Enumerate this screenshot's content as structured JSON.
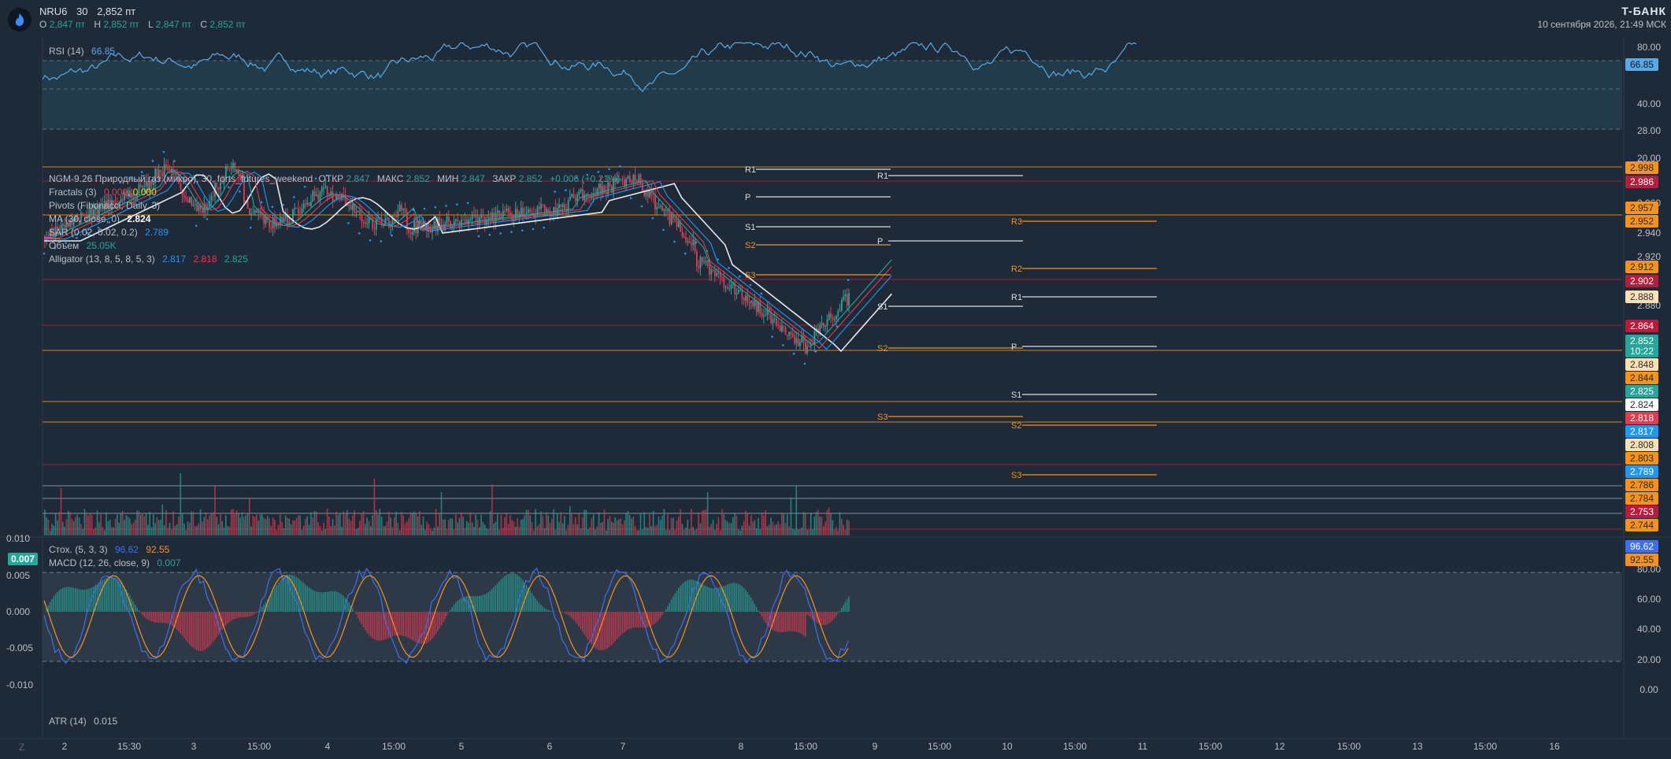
{
  "header": {
    "symbol": "NRU6",
    "interval": "30",
    "last_price": "2,852 пт",
    "open_label": "O",
    "open": "2,847 пт",
    "high_label": "H",
    "high": "2,852 пт",
    "low_label": "L",
    "low": "2,847 пт",
    "close_label": "C",
    "close": "2,852 пт",
    "brand": "T-БАНК",
    "datetime": "10 сентября 2026, 21:49 МСК"
  },
  "rsi": {
    "label": "RSI (14)",
    "value": "66.85",
    "axis": [
      "80.00",
      "40.00",
      "28.00",
      "20.00"
    ]
  },
  "main_legend": {
    "title": "NGM-9.26 Природный газ (микро), 30, forts_futures_weekend",
    "open_label": "ОТКР",
    "open": "2.847",
    "max_label": "МАКС",
    "max": "2.852",
    "min_label": "МИН",
    "min": "2.847",
    "close_label": "ЗАКР",
    "close": "2.852",
    "change": "+0.006 (+0.21%)",
    "fractals_label": "Fractals (3)",
    "fractals_a": "0.000",
    "fractals_b": "0.000",
    "pivots_label": "Pivots (Fibonacci, Daily, 3)",
    "ma_label": "MA (30, close, 0)",
    "ma_value": "2.824",
    "sar_label": "SAR (0.02, 0.02, 0.2)",
    "sar_value": "2.789",
    "volume_label": "Объем",
    "volume_value": "25.05K",
    "alligator_label": "Alligator (13, 8, 5, 8, 5, 3)",
    "alligator_a": "2.817",
    "alligator_b": "2.818",
    "alligator_c": "2.825"
  },
  "price_axis": [
    "2.960",
    "2.940",
    "2.920",
    "2.880"
  ],
  "price_tags": [
    {
      "text": "2.998",
      "bg": "#f7931a",
      "fg": "#1f2a38"
    },
    {
      "text": "2.986",
      "bg": "#b71c3b",
      "fg": "#ffffff"
    },
    {
      "text": "2.957",
      "bg": "#f7931a",
      "fg": "#1f2a38"
    },
    {
      "text": "2.952",
      "bg": "#f7931a",
      "fg": "#1f2a38"
    },
    {
      "text": "2.912",
      "bg": "#f7931a",
      "fg": "#1f2a38"
    },
    {
      "text": "2.902",
      "bg": "#b71c3b",
      "fg": "#ffffff"
    },
    {
      "text": "2.888",
      "bg": "#ffe0b2",
      "fg": "#1f2a38"
    },
    {
      "text": "2.864",
      "bg": "#b71c3b",
      "fg": "#ffffff"
    },
    {
      "text": "2.852",
      "bg": "#26a69a",
      "fg": "#ffffff"
    },
    {
      "text": "10:22",
      "bg": "#26a69a",
      "fg": "#ffffff"
    },
    {
      "text": "2.848",
      "bg": "#ffe0b2",
      "fg": "#1f2a38"
    },
    {
      "text": "2.844",
      "bg": "#f7931a",
      "fg": "#1f2a38"
    },
    {
      "text": "2.825",
      "bg": "#26a69a",
      "fg": "#ffffff"
    },
    {
      "text": "2.824",
      "bg": "#ffffff",
      "fg": "#1f2a38"
    },
    {
      "text": "2.818",
      "bg": "#e53950",
      "fg": "#ffffff"
    },
    {
      "text": "2.817",
      "bg": "#2196f3",
      "fg": "#ffffff"
    },
    {
      "text": "2.808",
      "bg": "#ffe0b2",
      "fg": "#1f2a38"
    },
    {
      "text": "2.803",
      "bg": "#f7931a",
      "fg": "#1f2a38"
    },
    {
      "text": "2.789",
      "bg": "#2196f3",
      "fg": "#ffffff"
    },
    {
      "text": "2.786",
      "bg": "#f7931a",
      "fg": "#1f2a38"
    },
    {
      "text": "2.784",
      "bg": "#f7931a",
      "fg": "#1f2a38"
    },
    {
      "text": "2.753",
      "bg": "#b71c3b",
      "fg": "#ffffff"
    },
    {
      "text": "2.744",
      "bg": "#f7931a",
      "fg": "#1f2a38"
    }
  ],
  "pivot_labels": [
    "R1",
    "P",
    "S1",
    "S2",
    "S3",
    "R1",
    "P",
    "S1",
    "S2",
    "S3",
    "R3",
    "R2",
    "R1",
    "P",
    "S1",
    "S2",
    "S3"
  ],
  "stoch": {
    "label": "Стох. (5, 3, 3)",
    "k": "96.62",
    "d": "92.55",
    "axis": [
      "80.00",
      "60.00",
      "40.00",
      "20.00",
      "0.00"
    ]
  },
  "macd": {
    "label": "MACD (12, 26, close, 9)",
    "value": "0.007",
    "tag": "0.007",
    "axis": [
      "0.010",
      "0.005",
      "0.000",
      "-0.005",
      "-0.010"
    ]
  },
  "atr": {
    "label": "ATR (14)",
    "value": "0.015"
  },
  "time_axis": [
    "2",
    "15:30",
    "3",
    "15:00",
    "4",
    "15:00",
    "5",
    "6",
    "7",
    "8",
    "15:00",
    "9",
    "15:00",
    "10",
    "15:00",
    "11",
    "15:00",
    "12",
    "15:00",
    "13",
    "15:00",
    "16"
  ],
  "bottom_left": "Z",
  "colors": {
    "bg": "#1f2a38",
    "up": "#26a69a",
    "down": "#e53950",
    "orange": "#f7931a",
    "blue": "#5aa9e6"
  }
}
